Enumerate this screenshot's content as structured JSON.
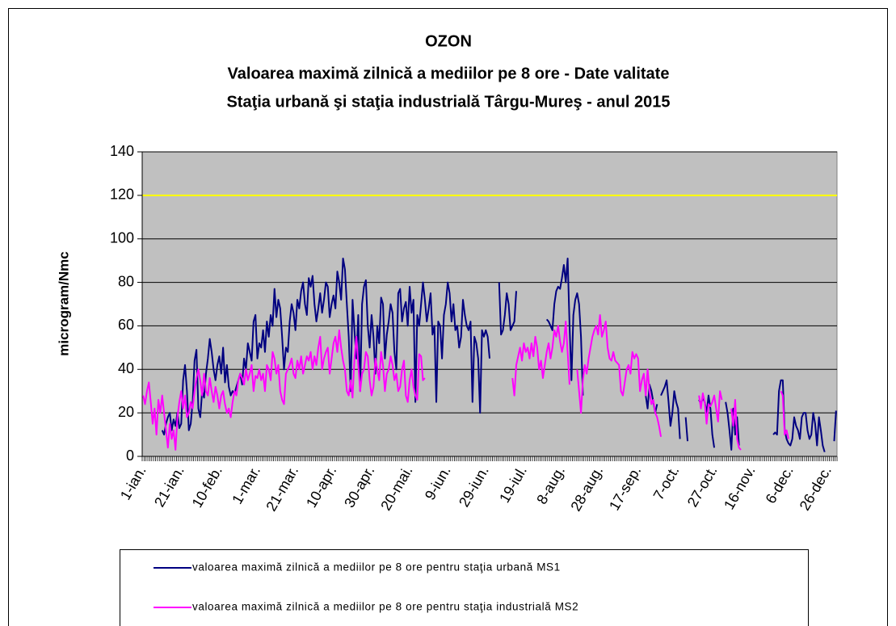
{
  "chart_data": {
    "type": "line",
    "title": "OZON",
    "subtitle": [
      "Valoarea maximă zilnică a mediilor pe 8 ore - Date valitate",
      "Staţia urbană şi staţia industrială Târgu-Mureş - anul 2015"
    ],
    "ylabel": "microgram/Nmc",
    "ylim": [
      0,
      140
    ],
    "yticks": [
      0,
      20,
      40,
      60,
      80,
      100,
      120,
      140
    ],
    "grid": true,
    "threshold": {
      "value": 120,
      "color": "#ffff00"
    },
    "categories": [
      "1-ian.",
      null,
      null,
      null,
      null,
      null,
      null,
      null,
      null,
      null,
      null,
      null,
      null,
      null,
      null,
      null,
      null,
      null,
      null,
      null,
      "21-ian.",
      null,
      null,
      null,
      null,
      null,
      null,
      null,
      null,
      null,
      null,
      null,
      null,
      null,
      null,
      null,
      null,
      null,
      null,
      null,
      "10-feb.",
      null,
      null,
      null,
      null,
      null,
      null,
      null,
      null,
      null,
      null,
      null,
      null,
      null,
      null,
      null,
      null,
      null,
      null,
      null,
      "1-mar.",
      null,
      null,
      null,
      null,
      null,
      null,
      null,
      null,
      null,
      null,
      null,
      null,
      null,
      null,
      null,
      null,
      null,
      null,
      null,
      "21-mar.",
      null,
      null,
      null,
      null,
      null,
      null,
      null,
      null,
      null,
      null,
      null,
      null,
      null,
      null,
      null,
      null,
      null,
      null,
      null,
      "10-apr.",
      null,
      null,
      null,
      null,
      null,
      null,
      null,
      null,
      null,
      null,
      null,
      null,
      null,
      null,
      null,
      null,
      null,
      null,
      null,
      "30-apr.",
      null,
      null,
      null,
      null,
      null,
      null,
      null,
      null,
      null,
      null,
      null,
      null,
      null,
      null,
      null,
      null,
      null,
      null,
      null,
      "20-mai.",
      null,
      null,
      null,
      null,
      null,
      null,
      null,
      null,
      null,
      null,
      null,
      null,
      null,
      null,
      null,
      null,
      null,
      null,
      null,
      "9-iun.",
      null,
      null,
      null,
      null,
      null,
      null,
      null,
      null,
      null,
      null,
      null,
      null,
      null,
      null,
      null,
      null,
      null,
      null,
      null,
      "29-iun.",
      null,
      null,
      null,
      null,
      null,
      null,
      null,
      null,
      null,
      null,
      null,
      null,
      null,
      null,
      null,
      null,
      null,
      null,
      null,
      "19-iul.",
      null,
      null,
      null,
      null,
      null,
      null,
      null,
      null,
      null,
      null,
      null,
      null,
      null,
      null,
      null,
      null,
      null,
      null,
      null,
      "8-aug.",
      null,
      null,
      null,
      null,
      null,
      null,
      null,
      null,
      null,
      null,
      null,
      null,
      null,
      null,
      null,
      null,
      null,
      null,
      null,
      "28-aug.",
      null,
      null,
      null,
      null,
      null,
      null,
      null,
      null,
      null,
      null,
      null,
      null,
      null,
      null,
      null,
      null,
      null,
      null,
      null,
      "17-sep.",
      null,
      null,
      null,
      null,
      null,
      null,
      null,
      null,
      null,
      null,
      null,
      null,
      null,
      null,
      null,
      null,
      null,
      null,
      null,
      "7-oct.",
      null,
      null,
      null,
      null,
      null,
      null,
      null,
      null,
      null,
      null,
      null,
      null,
      null,
      null,
      null,
      null,
      null,
      null,
      null,
      "27-oct.",
      null,
      null,
      null,
      null,
      null,
      null,
      null,
      null,
      null,
      null,
      null,
      null,
      null,
      null,
      null,
      null,
      null,
      null,
      null,
      "16-nov.",
      null,
      null,
      null,
      null,
      null,
      null,
      null,
      null,
      null,
      null,
      null,
      null,
      null,
      null,
      null,
      null,
      null,
      null,
      null,
      "6-dec.",
      null,
      null,
      null,
      null,
      null,
      null,
      null,
      null,
      null,
      null,
      null,
      null,
      null,
      null,
      null,
      null,
      null,
      null,
      null,
      "26-dec.",
      null,
      null,
      null,
      null
    ],
    "series": [
      {
        "name": "valoarea maximă zilnică a mediilor pe 8 ore pentru staţia urbană MS1",
        "color": "#000080",
        "values": [
          null,
          null,
          null,
          null,
          null,
          null,
          null,
          null,
          null,
          null,
          12,
          10,
          15,
          18,
          20,
          12,
          17,
          14,
          20,
          13,
          15,
          35,
          42,
          30,
          12,
          15,
          25,
          44,
          49,
          22,
          18,
          30,
          27,
          38,
          45,
          54,
          48,
          40,
          35,
          42,
          46,
          38,
          50,
          34,
          42,
          32,
          28,
          30,
          29,
          32,
          35,
          38,
          33,
          45,
          40,
          52,
          48,
          44,
          62,
          65,
          45,
          52,
          50,
          58,
          48,
          62,
          55,
          65,
          60,
          77,
          64,
          72,
          68,
          55,
          40,
          50,
          48,
          62,
          70,
          66,
          58,
          72,
          68,
          76,
          80,
          70,
          65,
          82,
          78,
          83,
          70,
          62,
          68,
          75,
          66,
          72,
          80,
          78,
          64,
          70,
          74,
          68,
          85,
          80,
          72,
          91,
          86,
          70,
          55,
          30,
          72,
          58,
          45,
          65,
          30,
          70,
          78,
          81,
          60,
          50,
          65,
          55,
          38,
          60,
          52,
          73,
          70,
          45,
          56,
          62,
          70,
          66,
          48,
          40,
          75,
          77,
          62,
          68,
          71,
          60,
          78,
          66,
          72,
          25,
          65,
          60,
          70,
          80,
          72,
          62,
          68,
          75,
          56,
          60,
          25,
          62,
          60,
          45,
          65,
          70,
          80,
          75,
          62,
          70,
          58,
          60,
          50,
          55,
          72,
          65,
          60,
          58,
          62,
          25,
          55,
          52,
          45,
          20,
          58,
          55,
          58,
          55,
          45,
          null,
          null,
          null,
          null,
          80,
          56,
          58,
          65,
          75,
          70,
          58,
          60,
          62,
          76,
          null,
          null,
          null,
          null,
          null,
          null,
          null,
          null,
          null,
          null,
          null,
          null,
          null,
          null,
          null,
          63,
          62,
          60,
          58,
          70,
          76,
          78,
          77,
          82,
          88,
          80,
          91,
          60,
          35,
          65,
          72,
          75,
          70,
          55,
          28,
          null,
          null,
          null,
          null,
          null,
          null,
          null,
          null,
          null,
          null,
          null,
          null,
          null,
          null,
          null,
          null,
          null,
          null,
          null,
          null,
          null,
          null,
          null,
          null,
          null,
          null,
          null,
          null,
          null,
          null,
          null,
          null,
          28,
          22,
          33,
          30,
          25,
          20,
          24,
          null,
          28,
          30,
          32,
          35,
          25,
          14,
          20,
          30,
          25,
          22,
          8,
          null,
          null,
          18,
          7,
          null,
          null,
          null,
          null,
          null,
          26,
          24,
          27,
          25,
          20,
          28,
          22,
          10,
          4,
          null,
          null,
          null,
          null,
          null,
          25,
          20,
          12,
          3,
          22,
          10,
          18,
          5,
          null,
          null,
          null,
          null,
          null,
          null,
          null,
          null,
          null,
          null,
          null,
          null,
          null,
          null,
          null,
          null,
          null,
          10,
          11,
          10,
          30,
          35,
          35,
          12,
          8,
          6,
          5,
          8,
          18,
          14,
          12,
          8,
          18,
          20,
          20,
          12,
          8,
          10,
          20,
          15,
          5,
          18,
          12,
          5,
          2,
          null,
          null,
          null,
          null,
          7,
          21
        ]
      },
      {
        "name": "valoarea maximă zilnică a mediilor pe 8 ore pentru staţia industrială MS2",
        "color": "#ff00ff",
        "values": [
          28,
          24,
          30,
          34,
          25,
          15,
          22,
          10,
          26,
          20,
          28,
          20,
          12,
          4,
          15,
          8,
          12,
          3,
          18,
          25,
          30,
          22,
          28,
          18,
          20,
          25,
          22,
          30,
          36,
          40,
          35,
          28,
          38,
          30,
          28,
          36,
          30,
          25,
          32,
          28,
          22,
          28,
          30,
          24,
          20,
          22,
          18,
          25,
          30,
          28,
          35,
          38,
          36,
          33,
          40,
          35,
          38,
          42,
          30,
          37,
          36,
          40,
          35,
          38,
          30,
          42,
          40,
          35,
          48,
          45,
          38,
          42,
          30,
          26,
          24,
          38,
          40,
          42,
          45,
          38,
          36,
          44,
          40,
          46,
          38,
          42,
          46,
          44,
          48,
          40,
          46,
          42,
          50,
          55,
          40,
          45,
          48,
          50,
          38,
          45,
          52,
          55,
          48,
          58,
          50,
          44,
          40,
          30,
          28,
          35,
          27,
          45,
          55,
          42,
          30,
          38,
          40,
          48,
          46,
          35,
          28,
          32,
          45,
          40,
          35,
          48,
          42,
          30,
          38,
          40,
          46,
          42,
          35,
          38,
          30,
          32,
          40,
          44,
          28,
          25,
          35,
          40,
          32,
          28,
          26,
          47,
          46,
          35,
          36,
          null,
          null,
          null,
          null,
          null,
          null,
          null,
          null,
          null,
          null,
          null,
          null,
          null,
          null,
          null,
          null,
          null,
          null,
          null,
          null,
          null,
          null,
          null,
          null,
          null,
          null,
          null,
          null,
          null,
          null,
          null,
          null,
          null,
          null,
          null,
          null,
          null,
          null,
          null,
          null,
          null,
          null,
          null,
          null,
          null,
          36,
          28,
          42,
          46,
          50,
          44,
          52,
          48,
          50,
          45,
          52,
          46,
          55,
          50,
          40,
          44,
          36,
          42,
          48,
          52,
          45,
          50,
          58,
          55,
          60,
          53,
          48,
          52,
          62,
          48,
          33,
          null,
          null,
          null,
          40,
          30,
          20,
          35,
          42,
          38,
          45,
          50,
          55,
          58,
          60,
          56,
          65,
          55,
          58,
          62,
          50,
          45,
          44,
          48,
          44,
          43,
          42,
          30,
          28,
          34,
          40,
          42,
          38,
          48,
          45,
          47,
          45,
          30,
          35,
          38,
          28,
          40,
          30,
          24,
          26,
          20,
          18,
          14,
          9,
          null,
          null,
          null,
          null,
          null,
          null,
          null,
          null,
          null,
          null,
          null,
          null,
          null,
          null,
          null,
          null,
          null,
          null,
          null,
          28,
          22,
          29,
          25,
          15,
          24,
          23,
          25,
          28,
          22,
          16,
          30,
          26,
          null,
          null,
          null,
          null,
          22,
          14,
          26,
          8,
          4,
          3,
          null,
          null,
          null,
          null,
          null,
          null,
          null,
          null,
          null,
          null,
          null,
          null,
          null,
          null,
          null,
          null,
          null,
          null,
          null,
          null,
          30,
          28,
          10,
          12,
          8,
          null,
          null,
          null,
          null,
          null,
          null,
          null,
          null,
          null,
          null,
          null,
          null,
          null,
          null,
          null,
          null,
          null,
          null,
          null,
          null,
          null,
          null,
          null,
          null,
          null
        ]
      }
    ]
  }
}
